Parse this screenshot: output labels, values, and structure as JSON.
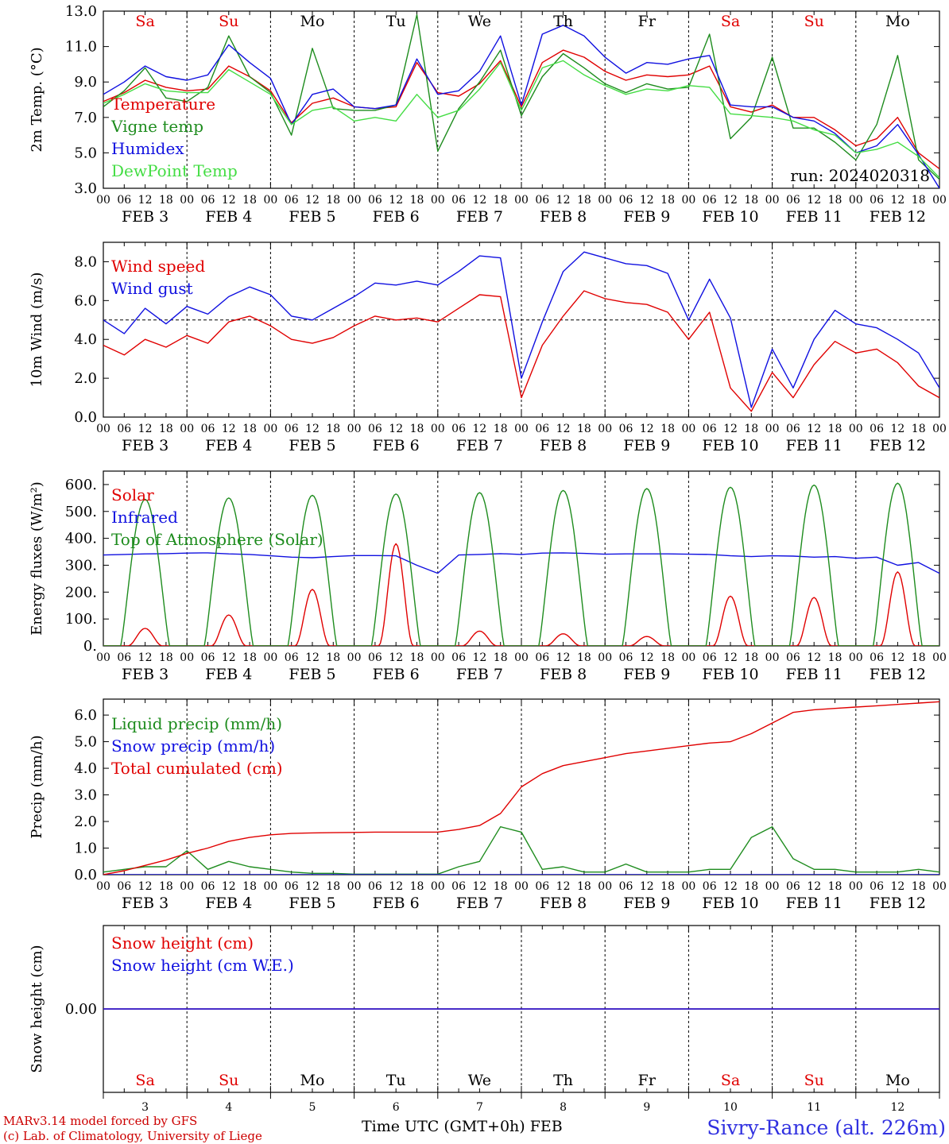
{
  "chart_data": [
    {
      "type": "line",
      "ylabel": "2m Temp. (°C)",
      "ylim": [
        3.0,
        13.0
      ],
      "yticks": [
        "3.0",
        "5.0",
        "7.0",
        "9.0",
        "11.0",
        "13.0"
      ],
      "annotation": "run: 2024020318",
      "day_labels": [
        {
          "text": "Sa",
          "color": "#e00000"
        },
        {
          "text": "Su",
          "color": "#e00000"
        },
        {
          "text": "Mo",
          "color": "#000000"
        },
        {
          "text": "Tu",
          "color": "#000000"
        },
        {
          "text": "We",
          "color": "#000000"
        },
        {
          "text": "Th",
          "color": "#000000"
        },
        {
          "text": "Fr",
          "color": "#000000"
        },
        {
          "text": "Sa",
          "color": "#e00000"
        },
        {
          "text": "Su",
          "color": "#e00000"
        },
        {
          "text": "Mo",
          "color": "#000000"
        }
      ],
      "series": [
        {
          "name": "Temperature",
          "color": "#e00000",
          "x": [
            0,
            6,
            12,
            18,
            24,
            30,
            36,
            42,
            48,
            54,
            60,
            66,
            72,
            78,
            84,
            90,
            96,
            102,
            108,
            114,
            120,
            126,
            132,
            138,
            144,
            150,
            156,
            162,
            168,
            174,
            180,
            186,
            192,
            198,
            204,
            210,
            216,
            222,
            228,
            234,
            240
          ],
          "values": [
            7.9,
            8.4,
            9.1,
            8.7,
            8.5,
            8.6,
            9.9,
            9.3,
            8.5,
            6.7,
            7.8,
            8.1,
            7.6,
            7.5,
            7.6,
            10.1,
            8.4,
            8.2,
            8.9,
            10.2,
            7.6,
            10.1,
            10.8,
            10.4,
            9.6,
            9.1,
            9.4,
            9.3,
            9.4,
            9.9,
            7.6,
            7.3,
            7.7,
            7.0,
            7.0,
            6.3,
            5.4,
            5.8,
            7.0,
            5.0,
            4.1
          ]
        },
        {
          "name": "Vigne temp",
          "color": "#1e8c1e",
          "x": [
            0,
            6,
            12,
            18,
            24,
            30,
            36,
            42,
            48,
            54,
            60,
            66,
            72,
            78,
            84,
            90,
            96,
            102,
            108,
            114,
            120,
            126,
            132,
            138,
            144,
            150,
            156,
            162,
            168,
            174,
            180,
            186,
            192,
            198,
            204,
            210,
            216,
            222,
            228,
            234,
            240
          ],
          "values": [
            7.6,
            8.5,
            9.8,
            8.1,
            7.9,
            8.7,
            11.6,
            9.3,
            8.4,
            6.0,
            10.9,
            7.5,
            7.4,
            7.4,
            7.7,
            12.8,
            5.1,
            7.5,
            9.0,
            10.8,
            7.1,
            9.3,
            10.6,
            9.8,
            8.9,
            8.4,
            8.9,
            8.6,
            8.7,
            11.7,
            5.8,
            7.0,
            10.4,
            6.4,
            6.4,
            5.6,
            4.6,
            6.6,
            10.5,
            4.6,
            3.5
          ]
        },
        {
          "name": "Humidex",
          "color": "#1010e0",
          "x": [
            0,
            6,
            12,
            18,
            24,
            30,
            36,
            42,
            48,
            54,
            60,
            66,
            72,
            78,
            84,
            90,
            96,
            102,
            108,
            114,
            120,
            126,
            132,
            138,
            144,
            150,
            156,
            162,
            168,
            174,
            180,
            186,
            192,
            198,
            204,
            210,
            216,
            222,
            228,
            234,
            240
          ],
          "values": [
            8.3,
            9.0,
            9.9,
            9.3,
            9.1,
            9.4,
            11.1,
            10.1,
            9.2,
            6.6,
            8.3,
            8.6,
            7.6,
            7.5,
            7.7,
            10.3,
            8.3,
            8.5,
            9.6,
            11.6,
            7.7,
            11.7,
            12.2,
            11.6,
            10.4,
            9.5,
            10.1,
            10.0,
            10.3,
            10.5,
            7.7,
            7.6,
            7.6,
            7.0,
            6.8,
            6.1,
            5.0,
            5.4,
            6.6,
            4.9,
            3.0
          ]
        },
        {
          "name": "DewPoint Temp",
          "color": "#44dd44",
          "x": [
            0,
            6,
            12,
            18,
            24,
            30,
            36,
            42,
            48,
            54,
            60,
            66,
            72,
            78,
            84,
            90,
            96,
            102,
            108,
            114,
            120,
            126,
            132,
            138,
            144,
            150,
            156,
            162,
            168,
            174,
            180,
            186,
            192,
            198,
            204,
            210,
            216,
            222,
            228,
            234,
            240
          ],
          "values": [
            7.8,
            8.3,
            8.9,
            8.5,
            8.4,
            8.4,
            9.7,
            9.0,
            8.3,
            6.6,
            7.4,
            7.6,
            6.8,
            7.0,
            6.8,
            8.3,
            7.0,
            7.4,
            8.6,
            10.1,
            7.4,
            9.8,
            10.2,
            9.4,
            8.8,
            8.3,
            8.6,
            8.5,
            8.8,
            8.7,
            7.2,
            7.1,
            7.0,
            6.8,
            6.3,
            6.0,
            5.0,
            5.2,
            5.6,
            4.8,
            3.6
          ]
        }
      ]
    },
    {
      "type": "line",
      "ylabel": "10m Wind (m/s)",
      "ylim": [
        0.0,
        9.0
      ],
      "yticks": [
        "0.0",
        "2.0",
        "4.0",
        "6.0",
        "8.0"
      ],
      "refline": 5,
      "series": [
        {
          "name": "Wind speed",
          "color": "#e00000",
          "x": [
            0,
            6,
            12,
            18,
            24,
            30,
            36,
            42,
            48,
            54,
            60,
            66,
            72,
            78,
            84,
            90,
            96,
            102,
            108,
            114,
            120,
            126,
            132,
            138,
            144,
            150,
            156,
            162,
            168,
            174,
            180,
            186,
            192,
            198,
            204,
            210,
            216,
            222,
            228,
            234,
            240
          ],
          "values": [
            3.7,
            3.2,
            4.0,
            3.6,
            4.2,
            3.8,
            4.9,
            5.2,
            4.7,
            4.0,
            3.8,
            4.1,
            4.7,
            5.2,
            5.0,
            5.1,
            4.9,
            5.6,
            6.3,
            6.2,
            1.0,
            3.7,
            5.2,
            6.5,
            6.1,
            5.9,
            5.8,
            5.4,
            4.0,
            5.4,
            1.5,
            0.3,
            2.3,
            1.0,
            2.7,
            3.9,
            3.3,
            3.5,
            2.8,
            1.6,
            1.0
          ]
        },
        {
          "name": "Wind gust",
          "color": "#1010e0",
          "x": [
            0,
            6,
            12,
            18,
            24,
            30,
            36,
            42,
            48,
            54,
            60,
            66,
            72,
            78,
            84,
            90,
            96,
            102,
            108,
            114,
            120,
            126,
            132,
            138,
            144,
            150,
            156,
            162,
            168,
            174,
            180,
            186,
            192,
            198,
            204,
            210,
            216,
            222,
            228,
            234,
            240
          ],
          "values": [
            5.0,
            4.3,
            5.6,
            4.8,
            5.7,
            5.3,
            6.2,
            6.7,
            6.3,
            5.2,
            5.0,
            5.6,
            6.2,
            6.9,
            6.8,
            7.0,
            6.8,
            7.5,
            8.3,
            8.2,
            2.0,
            4.9,
            7.5,
            8.5,
            8.2,
            7.9,
            7.8,
            7.4,
            5.0,
            7.1,
            5.1,
            0.5,
            3.5,
            1.5,
            4.0,
            5.5,
            4.8,
            4.6,
            4.0,
            3.3,
            1.5
          ]
        }
      ]
    },
    {
      "type": "line",
      "ylabel": "Energy fluxes (W/m²)",
      "ylim": [
        0,
        650
      ],
      "yticks": [
        "0.",
        "100.",
        "200.",
        "300.",
        "400.",
        "500.",
        "600."
      ],
      "solar_peaks": [
        65,
        115,
        210,
        380,
        55,
        45,
        35,
        185,
        180,
        275
      ],
      "toa_peaks": [
        545,
        550,
        560,
        565,
        570,
        578,
        585,
        590,
        598,
        605
      ],
      "series": [
        {
          "name": "Solar",
          "color": "#e00000"
        },
        {
          "name": "Infrared",
          "color": "#1010e0",
          "x": [
            0,
            6,
            12,
            18,
            24,
            30,
            36,
            42,
            48,
            54,
            60,
            66,
            72,
            78,
            84,
            90,
            96,
            102,
            108,
            114,
            120,
            126,
            132,
            138,
            144,
            150,
            156,
            162,
            168,
            174,
            180,
            186,
            192,
            198,
            204,
            210,
            216,
            222,
            228,
            234,
            240
          ],
          "values": [
            338,
            340,
            342,
            343,
            345,
            346,
            342,
            340,
            335,
            330,
            328,
            332,
            336,
            336,
            335,
            300,
            270,
            338,
            340,
            343,
            340,
            345,
            346,
            344,
            341,
            342,
            342,
            342,
            341,
            340,
            335,
            332,
            335,
            334,
            330,
            332,
            326,
            330,
            300,
            310,
            270
          ]
        },
        {
          "name": "Top of Atmosphere (Solar)",
          "color": "#1e8c1e"
        }
      ]
    },
    {
      "type": "line",
      "ylabel": "Precip (mm/h)",
      "ylim": [
        0.0,
        6.6
      ],
      "yticks": [
        "0.0",
        "1.0",
        "2.0",
        "3.0",
        "4.0",
        "5.0",
        "6.0"
      ],
      "series": [
        {
          "name": "Liquid precip (mm/h)",
          "color": "#1e8c1e",
          "x": [
            0,
            6,
            12,
            18,
            24,
            30,
            36,
            42,
            48,
            54,
            60,
            66,
            72,
            78,
            84,
            90,
            96,
            102,
            108,
            114,
            120,
            126,
            132,
            138,
            144,
            150,
            156,
            162,
            168,
            174,
            180,
            186,
            192,
            198,
            204,
            210,
            216,
            222,
            228,
            234,
            240
          ],
          "values": [
            0.1,
            0.2,
            0.3,
            0.3,
            0.9,
            0.2,
            0.5,
            0.3,
            0.2,
            0.1,
            0.05,
            0.05,
            0.02,
            0.02,
            0.02,
            0.02,
            0.02,
            0.3,
            0.5,
            1.8,
            1.6,
            0.2,
            0.3,
            0.1,
            0.1,
            0.4,
            0.1,
            0.1,
            0.1,
            0.2,
            0.2,
            1.4,
            1.8,
            0.6,
            0.2,
            0.2,
            0.1,
            0.1,
            0.1,
            0.2,
            0.1
          ]
        },
        {
          "name": "Snow precip (mm/h)",
          "color": "#1010e0",
          "x": [
            0,
            240
          ],
          "values": [
            0,
            0
          ]
        },
        {
          "name": "Total cumulated (cm)",
          "color": "#e00000",
          "x": [
            0,
            6,
            12,
            18,
            24,
            30,
            36,
            42,
            48,
            54,
            60,
            66,
            72,
            78,
            84,
            90,
            96,
            102,
            108,
            114,
            120,
            126,
            132,
            138,
            144,
            150,
            156,
            162,
            168,
            174,
            180,
            186,
            192,
            198,
            204,
            210,
            216,
            222,
            228,
            234,
            240
          ],
          "values": [
            0.0,
            0.15,
            0.35,
            0.55,
            0.8,
            1.0,
            1.25,
            1.4,
            1.5,
            1.55,
            1.57,
            1.58,
            1.59,
            1.6,
            1.6,
            1.6,
            1.6,
            1.7,
            1.85,
            2.3,
            3.3,
            3.8,
            4.1,
            4.25,
            4.4,
            4.55,
            4.65,
            4.75,
            4.85,
            4.95,
            5.0,
            5.3,
            5.7,
            6.1,
            6.2,
            6.25,
            6.3,
            6.35,
            6.4,
            6.45,
            6.5
          ]
        }
      ]
    },
    {
      "type": "line",
      "ylabel": "Snow height (cm)",
      "ylim": [
        -1,
        1
      ],
      "yticks": [
        "0.00"
      ],
      "series": [
        {
          "name": "Snow height (cm)",
          "color": "#e00000",
          "x": [
            0,
            240
          ],
          "values": [
            0,
            0
          ]
        },
        {
          "name": "Snow height (cm W.E.)",
          "color": "#1010e0",
          "x": [
            0,
            240
          ],
          "values": [
            0,
            0
          ]
        }
      ]
    }
  ],
  "axes": {
    "hour_ticks": [
      "00",
      "06",
      "12",
      "18"
    ],
    "last_tick": "00",
    "date_labels": [
      "FEB  3",
      "FEB  4",
      "FEB  5",
      "FEB  6",
      "FEB  7",
      "FEB  8",
      "FEB  9",
      "FEB 10",
      "FEB 11",
      "FEB 12"
    ],
    "bottom_days": [
      "Sa",
      "Su",
      "Mo",
      "Tu",
      "We",
      "Th",
      "Fr",
      "Sa",
      "Su",
      "Mo"
    ],
    "bottom_day_colors": [
      "#e00000",
      "#e00000",
      "#000000",
      "#000000",
      "#000000",
      "#000000",
      "#000000",
      "#e00000",
      "#e00000",
      "#000000"
    ],
    "bottom_nums": [
      "3",
      "4",
      "5",
      "6",
      "7",
      "8",
      "9",
      "10",
      "11",
      "12"
    ],
    "xlabel": "Time UTC (GMT+0h) FEB"
  },
  "footer": {
    "credit_line1": "MARv3.14 model forced by GFS",
    "credit_line2": "(c) Lab. of Climatology, University of Liege",
    "station": "Sivry-Rance (alt. 226m)",
    "station_color": "#3030e0"
  }
}
